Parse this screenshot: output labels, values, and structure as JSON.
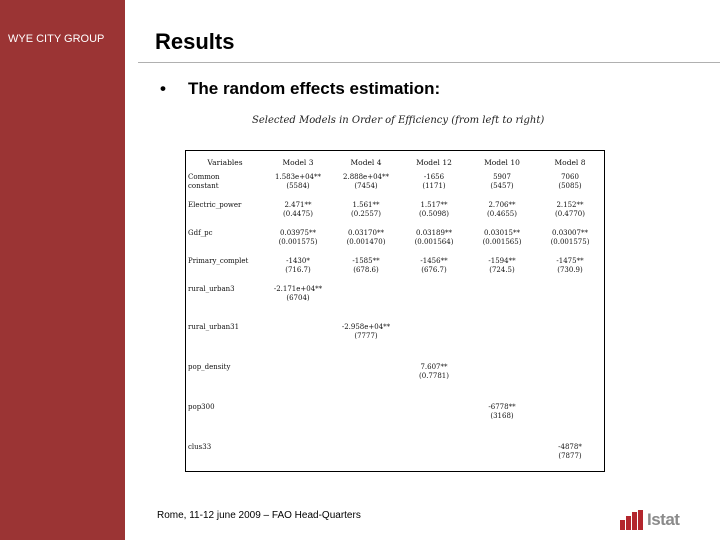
{
  "sidebar": {
    "org_name": "WYE CITY GROUP",
    "color": "#9b3434"
  },
  "header": {
    "title": "Results"
  },
  "bullet": {
    "text": "The random effects estimation:"
  },
  "table": {
    "caption": "Selected Models in Order of Efficiency (from left to right)",
    "headers": [
      "Variables",
      "Model 3",
      "Model 4",
      "Model 12",
      "Model 10",
      "Model 8"
    ],
    "rows": [
      {
        "var_lines": [
          "Common",
          "constant"
        ],
        "cells": [
          [
            "1.583e+04**",
            "(5584)"
          ],
          [
            "2.888e+04**",
            "(7454)"
          ],
          [
            "-1656",
            "(1171)"
          ],
          [
            "5907",
            "(5457)"
          ],
          [
            "7060",
            "(5085)"
          ]
        ],
        "height": 28
      },
      {
        "var_lines": [
          "Electric_power"
        ],
        "cells": [
          [
            "2.471**",
            "(0.4475)"
          ],
          [
            "1.561**",
            "(0.2557)"
          ],
          [
            "1.517**",
            "(0.5098)"
          ],
          [
            "2.706**",
            "(0.4655)"
          ],
          [
            "2.152**",
            "(0.4770)"
          ]
        ],
        "height": 28
      },
      {
        "var_lines": [
          "Gdf_pc"
        ],
        "cells": [
          [
            "0.03975**",
            "(0.001575)"
          ],
          [
            "0.03170**",
            "(0.001470)"
          ],
          [
            "0.03189**",
            "(0.001564)"
          ],
          [
            "0.03015**",
            "(0.001565)"
          ],
          [
            "0.03007**",
            "(0.001575)"
          ]
        ],
        "height": 28
      },
      {
        "var_lines": [
          "Primary_complet"
        ],
        "cells": [
          [
            "-1430*",
            "(716.7)"
          ],
          [
            "-1585**",
            "(678.6)"
          ],
          [
            "-1456**",
            "(676.7)"
          ],
          [
            "-1594**",
            "(724.5)"
          ],
          [
            "-1475**",
            "(730.9)"
          ]
        ],
        "height": 28
      },
      {
        "var_lines": [
          "rural_urban3"
        ],
        "cells": [
          [
            "-2.171e+04**",
            "(6704)"
          ],
          [],
          [],
          [],
          []
        ],
        "height": 38
      },
      {
        "var_lines": [
          "rural_urban31"
        ],
        "cells": [
          [],
          [
            "-2.958e+04**",
            "(7777)"
          ],
          [],
          [],
          []
        ],
        "height": 40
      },
      {
        "var_lines": [
          "pop_density"
        ],
        "cells": [
          [],
          [],
          [
            "7.607**",
            "(0.7781)"
          ],
          [],
          []
        ],
        "height": 40
      },
      {
        "var_lines": [
          "pop300"
        ],
        "cells": [
          [],
          [],
          [],
          [
            "-6778**",
            "(3168)"
          ],
          []
        ],
        "height": 40
      },
      {
        "var_lines": [
          "clus33"
        ],
        "cells": [
          [],
          [],
          [],
          [],
          [
            "-4878*",
            "(7877)"
          ]
        ],
        "height": 30
      }
    ]
  },
  "footer": {
    "text": "Rome, 11-12 june 2009 – FAO Head-Quarters"
  },
  "logo": {
    "text": "Istat",
    "mark_color": "#b3262d",
    "text_color": "#8a8a8a"
  }
}
